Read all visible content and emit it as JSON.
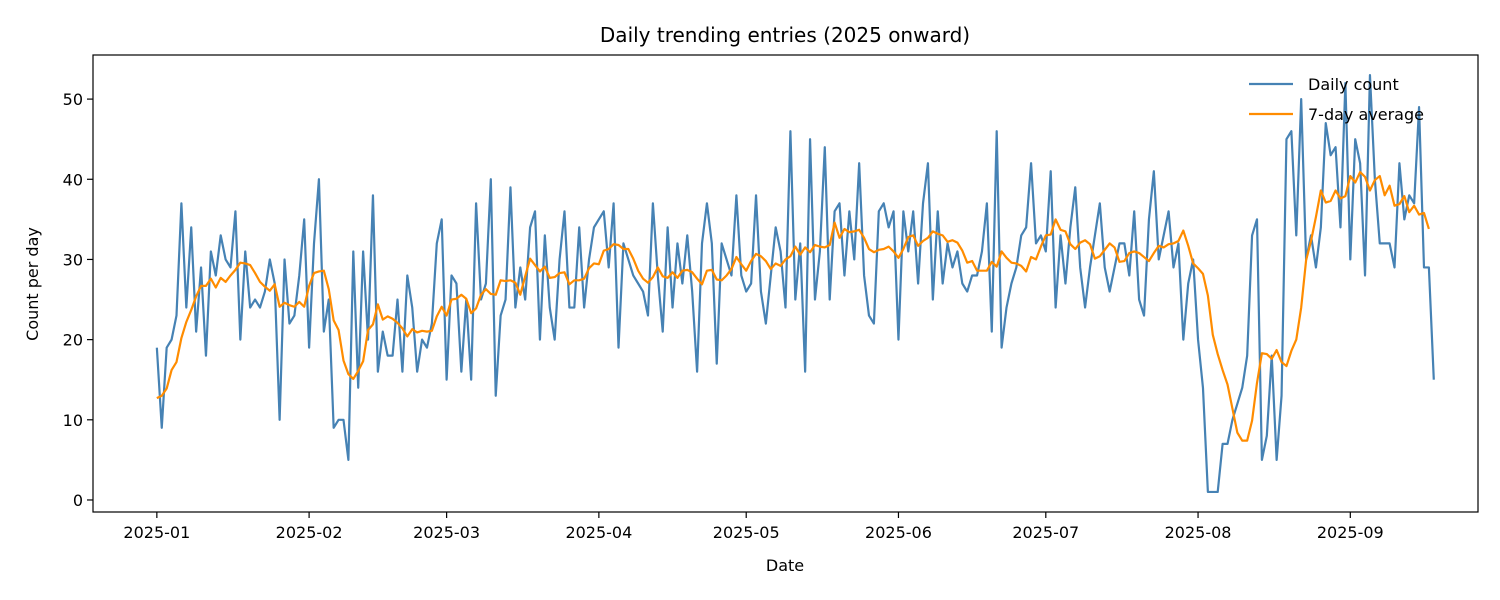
{
  "chart_data": {
    "type": "line",
    "title": "Daily trending entries (2025 onward)",
    "xlabel": "Date",
    "ylabel": "Count per day",
    "xlim": [
      "2024-12-19",
      "2025-09-27"
    ],
    "ylim": [
      -1.5,
      55.5
    ],
    "x_ticks": [
      "2025-01",
      "2025-02",
      "2025-03",
      "2025-04",
      "2025-05",
      "2025-06",
      "2025-07",
      "2025-08",
      "2025-09"
    ],
    "y_ticks": [
      0,
      10,
      20,
      30,
      40,
      50
    ],
    "grid": false,
    "legend_position": "top-right",
    "x_start": "2025-01-01",
    "series": [
      {
        "name": "Daily count",
        "color": "#4682b4",
        "values": [
          19,
          9,
          19,
          20,
          23,
          37,
          24,
          34,
          21,
          29,
          18,
          31,
          28,
          33,
          30,
          29,
          36,
          20,
          31,
          24,
          25,
          24,
          26,
          30,
          27,
          10,
          30,
          22,
          23,
          28,
          35,
          19,
          32,
          40,
          21,
          25,
          9,
          10,
          10,
          5,
          31,
          14,
          31,
          20,
          38,
          16,
          21,
          18,
          18,
          25,
          16,
          28,
          24,
          16,
          20,
          19,
          22,
          32,
          35,
          15,
          28,
          27,
          16,
          25,
          15,
          37,
          25,
          27,
          40,
          13,
          23,
          25,
          39,
          24,
          29,
          25,
          34,
          36,
          20,
          33,
          24,
          20,
          30,
          36,
          24,
          24,
          34,
          24,
          30,
          34,
          35,
          36,
          29,
          37,
          19,
          32,
          30,
          28,
          27,
          26,
          23,
          37,
          28,
          21,
          34,
          24,
          32,
          27,
          33,
          26,
          16,
          32,
          37,
          32,
          17,
          32,
          30,
          28,
          38,
          28,
          26,
          27,
          38,
          26,
          22,
          28,
          34,
          31,
          24,
          46,
          25,
          32,
          16,
          45,
          25,
          31,
          44,
          25,
          36,
          37,
          28,
          36,
          30,
          42,
          28,
          23,
          22,
          36,
          37,
          34,
          36,
          20,
          36,
          31,
          36,
          27,
          37,
          42,
          25,
          36,
          27,
          32,
          29,
          31,
          27,
          26,
          28,
          28,
          31,
          37,
          21,
          46,
          19,
          24,
          27,
          29,
          33,
          34,
          42,
          32,
          33,
          31,
          41,
          24,
          33,
          27,
          34,
          39,
          29,
          24,
          29,
          33,
          37,
          29,
          26,
          29,
          32,
          32,
          28,
          36,
          25,
          23,
          35,
          41,
          30,
          33,
          36,
          29,
          32,
          20,
          27,
          30,
          20,
          14,
          1,
          1,
          1,
          7,
          7,
          10,
          12,
          14,
          18,
          33,
          35,
          5,
          8,
          18,
          5,
          13,
          45,
          46,
          33,
          50,
          30,
          33,
          29,
          34,
          47,
          43,
          44,
          34,
          52,
          30,
          45,
          42,
          28,
          53,
          40,
          32,
          32,
          32,
          29,
          42,
          35,
          38,
          37,
          49,
          29,
          29,
          15
        ]
      },
      {
        "name": "7-day average",
        "color": "#ff8c00",
        "values": [
          12.7,
          13,
          13.9,
          16.2,
          17.2,
          20.2,
          22.2,
          23.7,
          25.4,
          26.7,
          26.7,
          27.6,
          26.5,
          27.7,
          27.2,
          28,
          28.7,
          29.6,
          29.5,
          29.3,
          28.3,
          27.2,
          26.6,
          26.1,
          26.9,
          24.1,
          24.6,
          24.3,
          24.1,
          24.7,
          24.1,
          26.7,
          28.3,
          28.5,
          28.6,
          26.3,
          22.4,
          21.2,
          17.4,
          15.7,
          15.1,
          16.1,
          17.3,
          21.2,
          21.9,
          24.4,
          22.5,
          22.9,
          22.6,
          22.1,
          21.4,
          20.4,
          21.3,
          20.9,
          21.1,
          21,
          21.1,
          22.9,
          24.1,
          23,
          25,
          25.1,
          25.6,
          25.1,
          23.3,
          23.9,
          25.6,
          26.3,
          25.7,
          25.6,
          27.4,
          27.3,
          27.4,
          27.1,
          25.6,
          27.9,
          30.1,
          29.3,
          28.5,
          29.1,
          27.7,
          27.8,
          28.3,
          28.4,
          26.9,
          27.4,
          27.4,
          27.6,
          28.9,
          29.5,
          29.4,
          31.1,
          31.3,
          31.9,
          31.8,
          31.3,
          31.3,
          30.1,
          28.6,
          27.6,
          27.1,
          27.8,
          29,
          27.9,
          27.7,
          28.4,
          27.7,
          28.6,
          28.7,
          28.4,
          27.6,
          26.9,
          28.6,
          28.7,
          27.5,
          27.4,
          28,
          28.8,
          30.3,
          29.4,
          28.6,
          29.8,
          30.7,
          30.4,
          29.8,
          28.8,
          29.5,
          29.2,
          30,
          30.4,
          31.6,
          30.6,
          31.5,
          30.9,
          31.8,
          31.6,
          31.5,
          31.8,
          34.6,
          32.7,
          33.8,
          33.4,
          33.5,
          33.7,
          32.7,
          31.3,
          30.9,
          31.2,
          31.3,
          31.6,
          31,
          30.2,
          31.3,
          32.8,
          33,
          31.7,
          32.3,
          32.7,
          33.5,
          33.2,
          33,
          32.2,
          32.4,
          32.1,
          31.1,
          29.6,
          29.8,
          28.6,
          28.6,
          28.6,
          29.7,
          29.1,
          31,
          30.2,
          29.6,
          29.5,
          29.2,
          28.5,
          30.3,
          30,
          31.6,
          33,
          33.1,
          35,
          33.7,
          33.5,
          31.9,
          31.3,
          32.1,
          32.4,
          31.9,
          30.1,
          30.4,
          31.2,
          32,
          31.5,
          29.7,
          29.8,
          30.8,
          31,
          30.8,
          30.3,
          29.8,
          30.8,
          31.7,
          31.5,
          31.9,
          32,
          32.3,
          33.6,
          31.7,
          29.5,
          28.9,
          28.2,
          25.5,
          20.6,
          18.2,
          16.2,
          14.4,
          11.4,
          8.4,
          7.4,
          7.4,
          9.9,
          14.6,
          18.3,
          18.2,
          17.6,
          18.7,
          17.2,
          16.7,
          18.6,
          20,
          24,
          29.9,
          32.3,
          35.3,
          38.6,
          37.1,
          37.3,
          38.6,
          37.6,
          37.9,
          40.4,
          39.6,
          40.9,
          40.3,
          38.6,
          39.9,
          40.4,
          38,
          39.2,
          36.7,
          36.9,
          37.9,
          35.9,
          36.7,
          35.6,
          35.8,
          33.8
        ]
      }
    ]
  }
}
